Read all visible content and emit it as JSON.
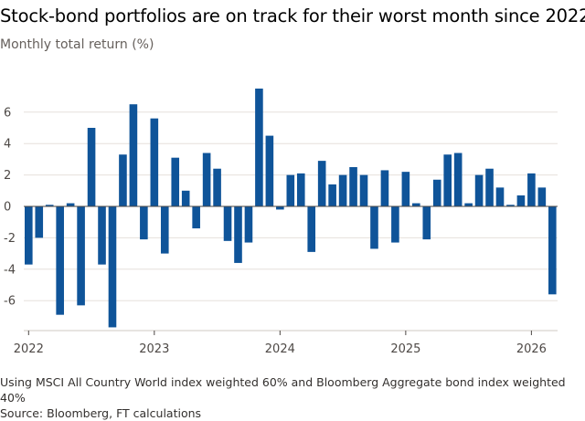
{
  "title": "Stock-bond portfolios are on track for their worst month since 2022",
  "subtitle": "Monthly total return (%)",
  "footnote": "Using MSCI All Country World index weighted 60% and Bloomberg Aggregate bond index weighted 40%",
  "source": "Source: Bloomberg, FT calculations",
  "colors": {
    "bar": "#0f5499",
    "grid": "#e6e0dc",
    "zero_line": "#4d4845"
  },
  "chart_data": {
    "type": "bar",
    "title": "Stock-bond portfolios are on track for their worst month since 2022",
    "ylabel": "Monthly total return (%)",
    "xlabel": "",
    "ylim": [
      -7.8,
      7.8
    ],
    "yticks": [
      -6,
      -4,
      -2,
      0,
      2,
      4,
      6
    ],
    "xtick_labels": [
      "2022",
      "2023",
      "2024",
      "2025",
      "2026"
    ],
    "grid": true,
    "categories": [
      "2022-01",
      "2022-02",
      "2022-03",
      "2022-04",
      "2022-05",
      "2022-06",
      "2022-07",
      "2022-08",
      "2022-09",
      "2022-10",
      "2022-11",
      "2022-12",
      "2023-01",
      "2023-02",
      "2023-03",
      "2023-04",
      "2023-05",
      "2023-06",
      "2023-07",
      "2023-08",
      "2023-09",
      "2023-10",
      "2023-11",
      "2023-12",
      "2024-01",
      "2024-02",
      "2024-03",
      "2024-04",
      "2024-05",
      "2024-06",
      "2024-07",
      "2024-08",
      "2024-09",
      "2024-10",
      "2024-11",
      "2024-12",
      "2025-01",
      "2025-02",
      "2025-03",
      "2025-04",
      "2025-05",
      "2025-06",
      "2025-07",
      "2025-08",
      "2025-09",
      "2025-10",
      "2025-11",
      "2025-12",
      "2026-01",
      "2026-02",
      "2026-03"
    ],
    "values": [
      -3.7,
      -2.0,
      0.1,
      -6.9,
      0.2,
      -6.3,
      5.0,
      -3.7,
      -7.7,
      3.3,
      6.5,
      -2.1,
      5.6,
      -3.0,
      3.1,
      1.0,
      -1.4,
      3.4,
      2.4,
      -2.2,
      -3.6,
      -2.3,
      7.5,
      4.5,
      -0.2,
      2.0,
      2.1,
      -2.9,
      2.9,
      1.4,
      2.0,
      2.5,
      2.0,
      -2.7,
      2.3,
      -2.3,
      2.2,
      0.2,
      -2.1,
      1.7,
      3.3,
      3.4,
      0.2,
      2.0,
      2.4,
      1.2,
      0.1,
      0.7,
      2.1,
      1.2,
      -5.6
    ]
  }
}
